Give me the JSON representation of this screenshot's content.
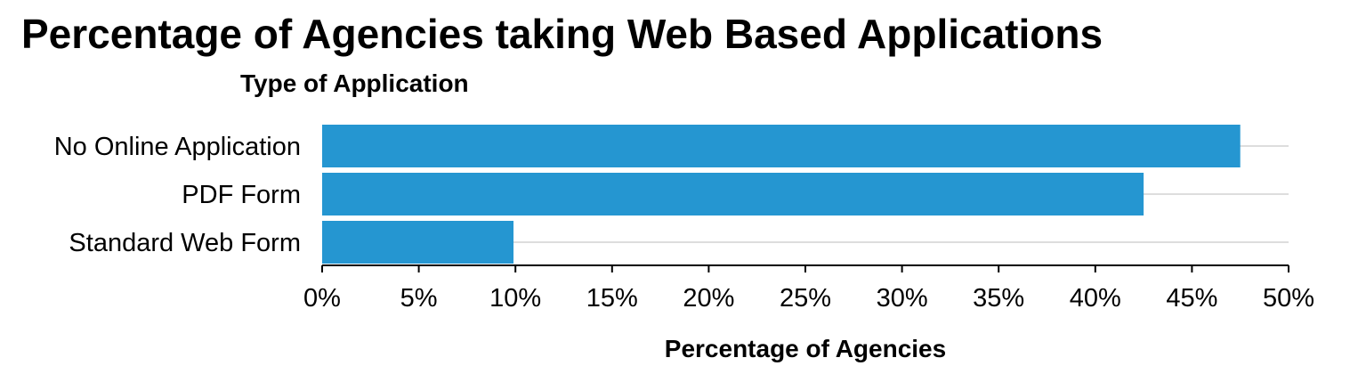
{
  "chart_data": {
    "type": "bar",
    "orientation": "horizontal",
    "title": "Percentage of Agencies taking Web Based Applications",
    "category_axis_title": "Type of Application",
    "xlabel": "Percentage of Agencies",
    "categories": [
      "No Online Application",
      "PDF Form",
      "Standard Web Form"
    ],
    "values": [
      47.5,
      42.5,
      9.9
    ],
    "xlim": [
      0,
      50
    ],
    "xticks": [
      0,
      5,
      10,
      15,
      20,
      25,
      30,
      35,
      40,
      45,
      50
    ],
    "xtick_labels": [
      "0%",
      "5%",
      "10%",
      "15%",
      "20%",
      "25%",
      "30%",
      "35%",
      "40%",
      "45%",
      "50%"
    ],
    "bar_color": "#2596d1",
    "grid": "horizontal guide lines behind bars",
    "legend": "none"
  }
}
